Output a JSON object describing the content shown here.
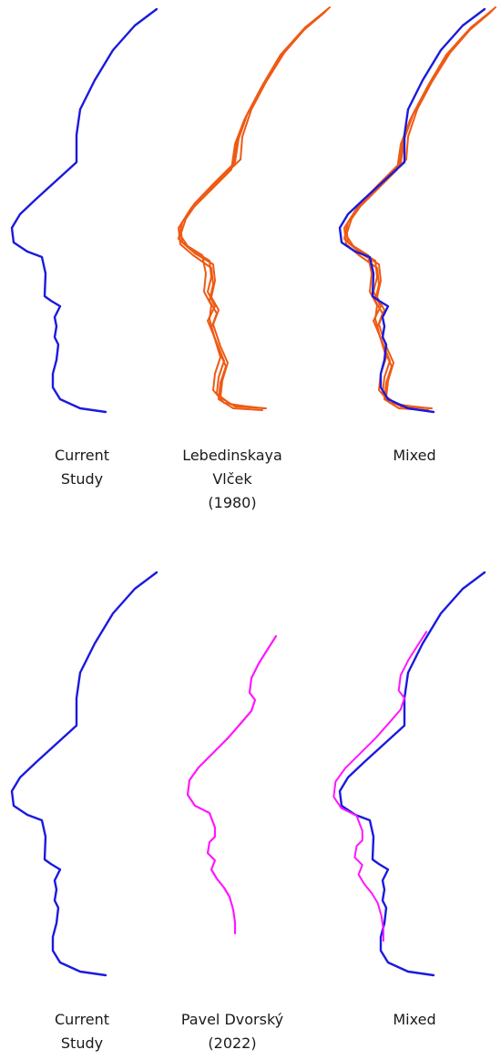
{
  "colors": {
    "current_study": "#1a1adf",
    "lebedinskaya": "#ee5a14",
    "dvorsky": "#ff16ff",
    "text": "#1a1a1a"
  },
  "rows": [
    {
      "panels": [
        {
          "label_lines": [
            "Current",
            "Study"
          ]
        },
        {
          "label_lines": [
            "Lebedinskaya",
            "Vlček",
            "(1980)"
          ]
        },
        {
          "label_lines": [
            "Mixed"
          ]
        }
      ]
    },
    {
      "panels": [
        {
          "label_lines": [
            "Current",
            "Study"
          ]
        },
        {
          "label_lines": [
            "Pavel Dvorský",
            "(2022)"
          ]
        },
        {
          "label_lines": [
            "Mixed"
          ]
        }
      ]
    }
  ]
}
